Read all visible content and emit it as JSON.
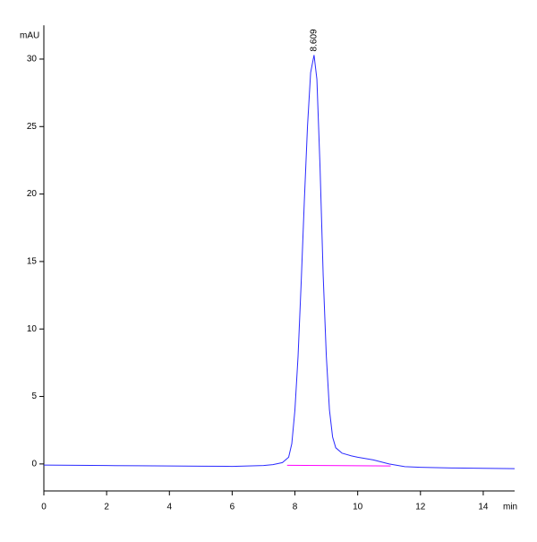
{
  "chart_data": {
    "type": "line",
    "y_label": "mAU",
    "x_label": "min",
    "xlim": [
      0,
      15
    ],
    "ylim": [
      -2,
      32.5
    ],
    "xticks": [
      0,
      2,
      4,
      6,
      8,
      10,
      12,
      14
    ],
    "yticks": [
      0,
      5,
      10,
      15,
      20,
      25,
      30
    ],
    "series": [
      {
        "color": "#2a2aff",
        "x": [
          0,
          1,
          2,
          3,
          4,
          5,
          6,
          6.5,
          7,
          7.3,
          7.6,
          7.8,
          7.9,
          8.0,
          8.1,
          8.2,
          8.3,
          8.4,
          8.5,
          8.609,
          8.7,
          8.8,
          8.9,
          9.0,
          9.1,
          9.2,
          9.3,
          9.5,
          9.8,
          10,
          10.5,
          11,
          11.5,
          12,
          13,
          14,
          15
        ],
        "values": [
          -0.08,
          -0.1,
          -0.12,
          -0.13,
          -0.15,
          -0.17,
          -0.18,
          -0.15,
          -0.12,
          -0.05,
          0.1,
          0.5,
          1.5,
          4,
          8,
          13.5,
          19.5,
          25,
          29,
          30.3,
          28.5,
          22,
          14,
          8,
          4,
          2,
          1.2,
          0.8,
          0.6,
          0.5,
          0.3,
          0,
          -0.2,
          -0.25,
          -0.3,
          -0.32,
          -0.35
        ]
      },
      {
        "color": "#ff00ff",
        "x": [
          7.75,
          11.05
        ],
        "values": [
          -0.1,
          -0.15
        ]
      }
    ],
    "annotations": [
      {
        "text": "8.609",
        "x": 8.609,
        "y": 30.3
      }
    ]
  }
}
